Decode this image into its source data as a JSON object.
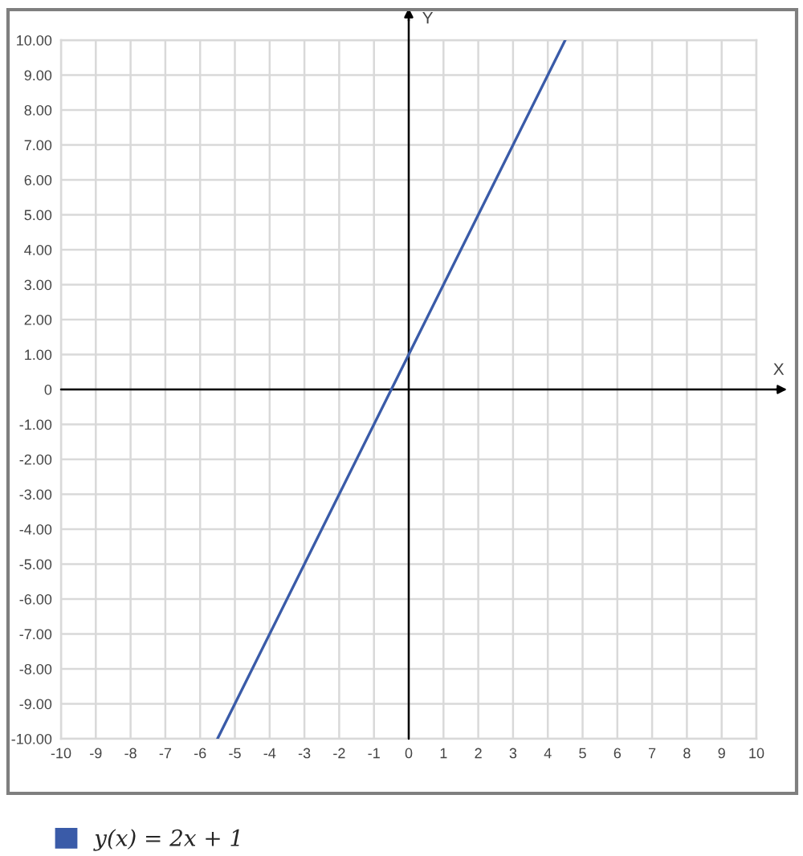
{
  "chart_data": {
    "type": "line",
    "xlabel": "X",
    "ylabel": "Y",
    "x": [
      -5.5,
      4.5
    ],
    "series": [
      {
        "name": "y(x) = 2x + 1",
        "color": "#3a5ba8",
        "values": [
          -10,
          10
        ]
      }
    ],
    "xlim": [
      -10,
      10
    ],
    "ylim": [
      -10,
      10
    ],
    "xticks": [
      -10,
      -9,
      -8,
      -7,
      -6,
      -5,
      -4,
      -3,
      -2,
      -1,
      0,
      1,
      2,
      3,
      4,
      5,
      6,
      7,
      8,
      9,
      10
    ],
    "yticks": [
      {
        "value": -10,
        "label": "-10.00"
      },
      {
        "value": -9,
        "label": "-9.00"
      },
      {
        "value": -8,
        "label": "-8.00"
      },
      {
        "value": -7,
        "label": "-7.00"
      },
      {
        "value": -6,
        "label": "-6.00"
      },
      {
        "value": -5,
        "label": "-5.00"
      },
      {
        "value": -4,
        "label": "-4.00"
      },
      {
        "value": -3,
        "label": "-3.00"
      },
      {
        "value": -2,
        "label": "-2.00"
      },
      {
        "value": -1,
        "label": "-1.00"
      },
      0,
      {
        "value": 1,
        "label": "1.00"
      },
      {
        "value": 2,
        "label": "2.00"
      },
      {
        "value": 3,
        "label": "3.00"
      },
      {
        "value": 4,
        "label": "4.00"
      },
      {
        "value": 5,
        "label": "5.00"
      },
      {
        "value": 6,
        "label": "6.00"
      },
      {
        "value": 7,
        "label": "7.00"
      },
      {
        "value": 8,
        "label": "8.00"
      },
      {
        "value": 9,
        "label": "9.00"
      },
      {
        "value": 10,
        "label": "10.00"
      }
    ],
    "grid": true,
    "legend": "bottom left",
    "marker": "none",
    "line_style": "solid"
  }
}
